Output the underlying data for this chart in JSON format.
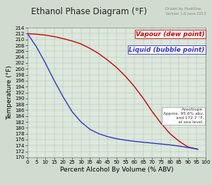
{
  "title": "Ethanol Phase Diagram (°F)",
  "subtitle": "Drawn by Hooktine,\nVersion 1.0 June 2013",
  "xlabel": "Percent Alcohol By Volume (% ABV)",
  "ylabel": "Temperature (°F)",
  "xlim": [
    0,
    100
  ],
  "ylim": [
    170,
    214
  ],
  "x_ticks": [
    0,
    5,
    10,
    15,
    20,
    25,
    30,
    35,
    40,
    45,
    50,
    55,
    60,
    65,
    70,
    75,
    80,
    85,
    90,
    95,
    100
  ],
  "y_ticks": [
    170,
    172,
    174,
    176,
    178,
    180,
    182,
    184,
    186,
    188,
    190,
    192,
    194,
    196,
    198,
    200,
    202,
    204,
    206,
    208,
    210,
    212,
    214
  ],
  "vapour_color": "#cc0000",
  "liquid_color": "#3333cc",
  "legend_vapour": "Vapour (dew point)",
  "legend_liquid": "Liquid (bubble point)",
  "azeotrope_text": "Azeotrope.\nApprox. 95.6% abv,\nand 172.7 °F,\nat sea level.",
  "bg_color": "#dce8dc",
  "fig_bg_color": "#d0dcd0",
  "grid_color": "#aabcaa",
  "title_fontsize": 8.5,
  "subtitle_fontsize": 3.8,
  "axis_label_fontsize": 6.5,
  "tick_fontsize": 5.0,
  "legend_fontsize": 6.5,
  "vapour_x": [
    0,
    5,
    10,
    15,
    20,
    25,
    30,
    35,
    40,
    45,
    50,
    55,
    60,
    65,
    70,
    75,
    80,
    85,
    90,
    95,
    95.6
  ],
  "vapour_y": [
    212,
    211.8,
    211.5,
    211.0,
    210.3,
    209.5,
    208.5,
    207.0,
    205.2,
    203.0,
    200.5,
    197.5,
    194.0,
    190.0,
    185.5,
    181.5,
    178.0,
    175.5,
    173.5,
    172.8,
    172.7
  ],
  "liquid_x": [
    0,
    5,
    10,
    15,
    20,
    25,
    30,
    35,
    40,
    45,
    50,
    55,
    60,
    65,
    70,
    75,
    80,
    85,
    90,
    95,
    95.6
  ],
  "liquid_y": [
    212,
    207.5,
    202.0,
    196.0,
    190.5,
    185.5,
    182.0,
    179.5,
    178.0,
    177.0,
    176.3,
    175.8,
    175.4,
    175.1,
    174.8,
    174.5,
    174.2,
    173.8,
    173.3,
    172.8,
    172.7
  ]
}
